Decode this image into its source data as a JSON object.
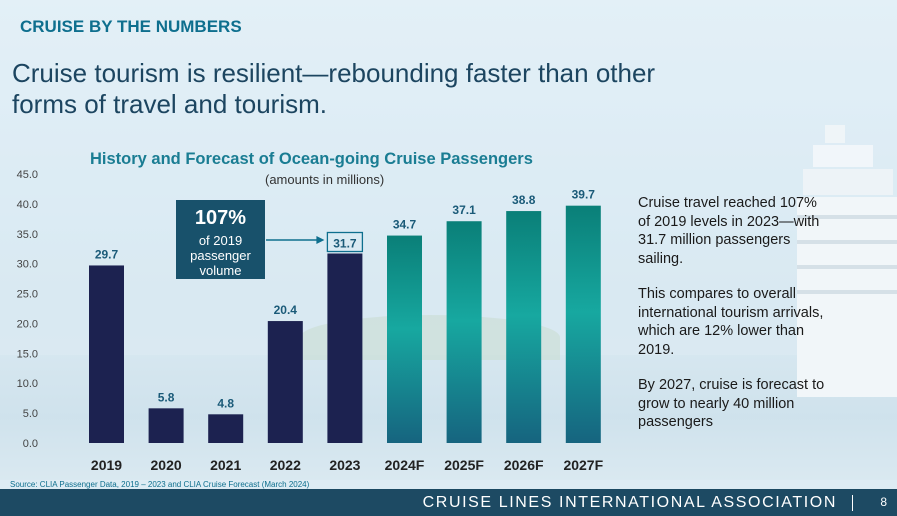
{
  "kicker": "CRUISE BY THE NUMBERS",
  "headline": "Cruise tourism is resilient—rebounding faster than other forms of travel and tourism.",
  "chart_data": {
    "type": "bar",
    "title": "History and Forecast of Ocean-going Cruise Passengers",
    "subtitle": "(amounts in millions)",
    "categories": [
      "2019",
      "2020",
      "2021",
      "2022",
      "2023",
      "2024F",
      "2025F",
      "2026F",
      "2027F"
    ],
    "values": [
      29.7,
      5.8,
      4.8,
      20.4,
      31.7,
      34.7,
      37.1,
      38.8,
      39.7
    ],
    "value_labels": [
      "29.7",
      "5.8",
      "4.8",
      "20.4",
      "31.7",
      "34.7",
      "37.1",
      "38.8",
      "39.7"
    ],
    "forecast": [
      false,
      false,
      false,
      false,
      false,
      true,
      true,
      true,
      true
    ],
    "ylim": [
      0,
      45
    ],
    "yticks": [
      "0.0",
      "5.0",
      "10.0",
      "15.0",
      "20.0",
      "25.0",
      "30.0",
      "35.0",
      "40.0",
      "45.0"
    ],
    "grid": false,
    "colors": {
      "history": "#1c2250",
      "forecast_top": "#0a7f78",
      "forecast_mid": "#17a8a0",
      "forecast_bottom": "#16647f"
    }
  },
  "callout": {
    "pct": "107%",
    "text": "of 2019 passenger volume"
  },
  "side_text": [
    "Cruise travel reached 107% of 2019 levels in 2023—with 31.7 million passengers sailing.",
    "This compares to overall international tourism arrivals, which are 12% lower than 2019.",
    "By 2027, cruise is forecast to grow to nearly 40 million passengers"
  ],
  "source": "Source: CLIA Passenger Data, 2019 – 2023 and CLIA Cruise Forecast (March 2024)",
  "footer": {
    "org": "CRUISE LINES INTERNATIONAL ASSOCIATION",
    "page": "8"
  }
}
